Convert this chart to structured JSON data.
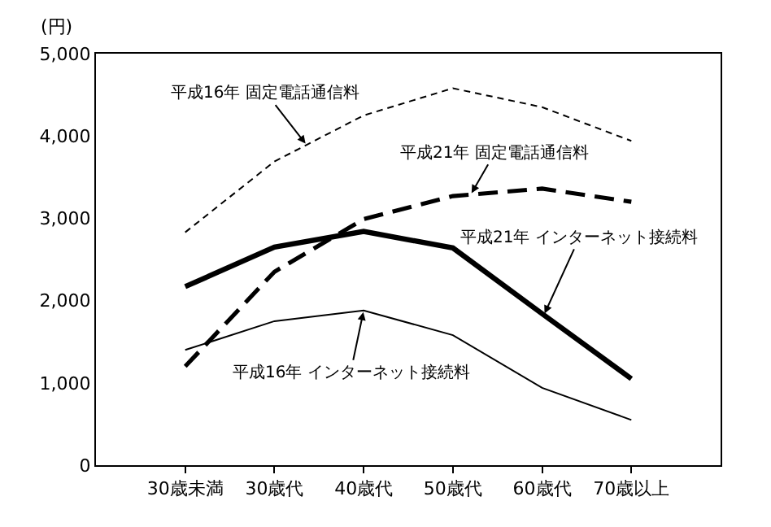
{
  "chart_data": {
    "type": "line",
    "ylabel": "(円)",
    "categories": [
      "30歳未満",
      "30歳代",
      "40歳代",
      "50歳代",
      "60歳代",
      "70歳以上"
    ],
    "ylim": [
      0,
      5000
    ],
    "yticks": [
      {
        "value": 0,
        "label": "0"
      },
      {
        "value": 1000,
        "label": "1,000"
      },
      {
        "value": 2000,
        "label": "2,000"
      },
      {
        "value": 3000,
        "label": "3,000"
      },
      {
        "value": 4000,
        "label": "4,000"
      },
      {
        "value": 5000,
        "label": "5,000"
      }
    ],
    "grid": false,
    "legend": false,
    "marker": "none",
    "series": [
      {
        "name": "平成16年 固定電話通信料",
        "color": "#000000",
        "line_style": "dashed",
        "values": [
          2830,
          3690,
          4250,
          4580,
          4350,
          3940
        ]
      },
      {
        "name": "平成21年 固定電話通信料",
        "color": "#000000",
        "line_style": "dashed",
        "values": [
          1200,
          2350,
          2990,
          3270,
          3360,
          3200
        ]
      },
      {
        "name": "平成21年 インターネット接続料",
        "color": "#000000",
        "line_style": "solid",
        "values": [
          2170,
          2650,
          2840,
          2640,
          1840,
          1050
        ]
      },
      {
        "name": "平成16年 インターネット接続料",
        "color": "#000000",
        "line_style": "solid",
        "values": [
          1400,
          1750,
          1880,
          1580,
          940,
          550
        ]
      }
    ]
  }
}
